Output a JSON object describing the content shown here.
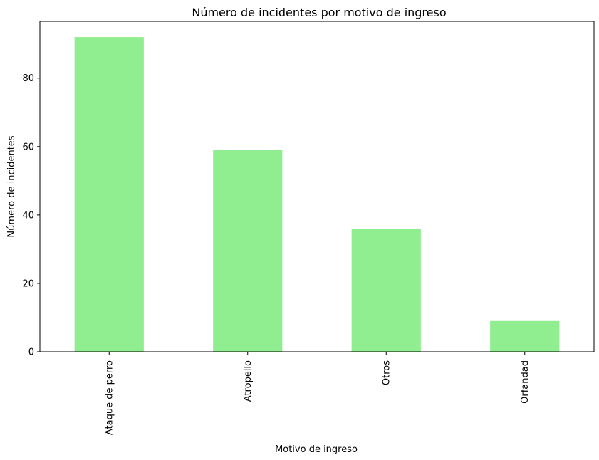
{
  "chart_data": {
    "type": "bar",
    "title": "Número de incidentes por motivo de ingreso",
    "xlabel": "Motivo de ingreso",
    "ylabel": "Número de incidentes",
    "categories": [
      "Ataque de perro",
      "Atropello",
      "Otros",
      "Orfandad"
    ],
    "values": [
      92,
      59,
      36,
      9
    ],
    "ylim": [
      0,
      96.6
    ],
    "yticks": [
      0,
      20,
      40,
      60,
      80
    ],
    "grid": false,
    "bar_color": "#90ee90"
  }
}
